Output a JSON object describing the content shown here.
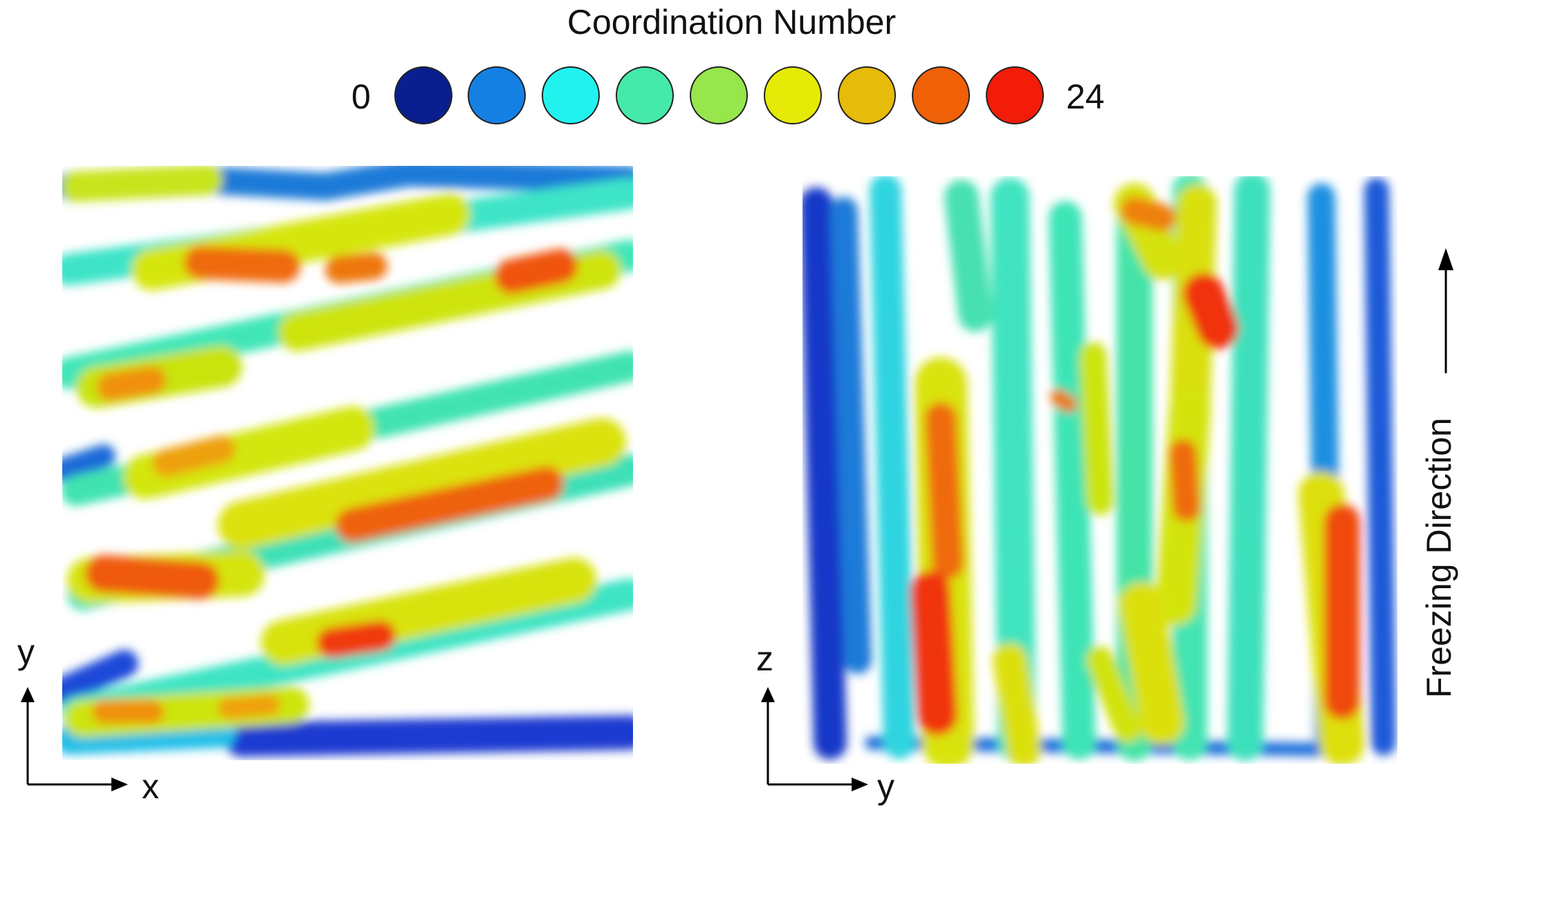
{
  "legend": {
    "title": "Coordination Number",
    "min_label": "0",
    "max_label": "24",
    "colors": [
      "#0a1f8f",
      "#1580e4",
      "#22f2ee",
      "#45e9a9",
      "#97e64c",
      "#e5ea06",
      "#e6bb0a",
      "#ef6007",
      "#f21c09"
    ]
  },
  "left_panel": {
    "axis_vertical": "y",
    "axis_horizontal": "x"
  },
  "right_panel": {
    "axis_vertical": "z",
    "axis_horizontal": "y",
    "direction_label": "Freezing Direction"
  }
}
